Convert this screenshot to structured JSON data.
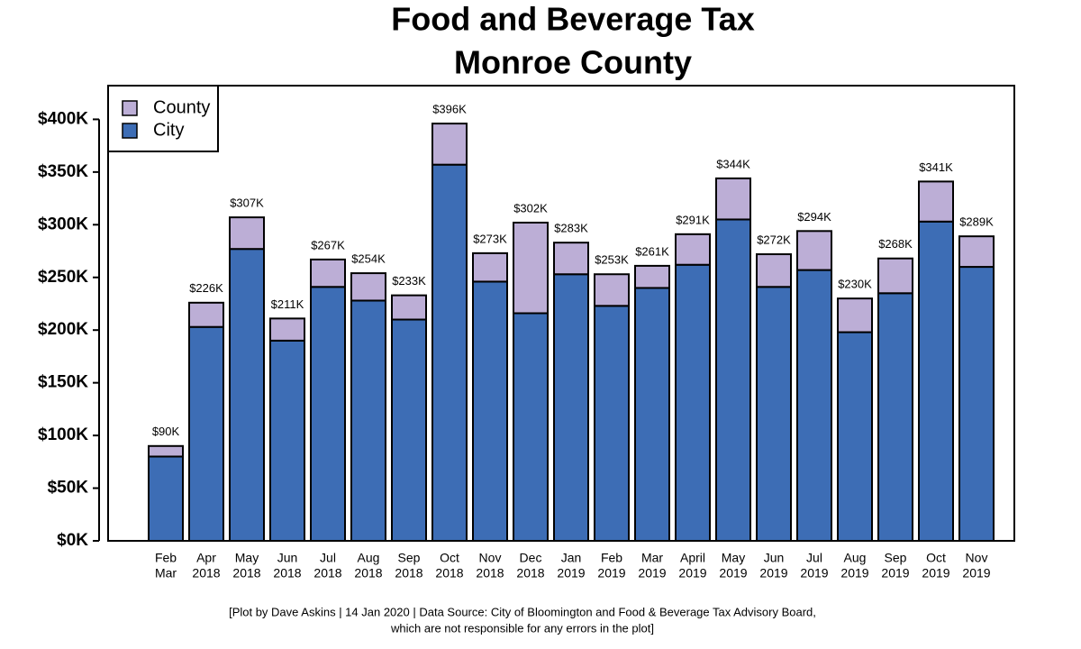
{
  "chart_data": {
    "type": "stacked_bar",
    "title": "Food and Beverage Tax",
    "subtitle": "Monroe County",
    "categories": [
      [
        "Feb",
        "Mar"
      ],
      [
        "Apr",
        "2018"
      ],
      [
        "May",
        "2018"
      ],
      [
        "Jun",
        "2018"
      ],
      [
        "Jul",
        "2018"
      ],
      [
        "Aug",
        "2018"
      ],
      [
        "Sep",
        "2018"
      ],
      [
        "Oct",
        "2018"
      ],
      [
        "Nov",
        "2018"
      ],
      [
        "Dec",
        "2018"
      ],
      [
        "Jan",
        "2019"
      ],
      [
        "Feb",
        "2019"
      ],
      [
        "Mar",
        "2019"
      ],
      [
        "April",
        "2019"
      ],
      [
        "May",
        "2019"
      ],
      [
        "Jun",
        "2019"
      ],
      [
        "Jul",
        "2019"
      ],
      [
        "Aug",
        "2019"
      ],
      [
        "Sep",
        "2019"
      ],
      [
        "Oct",
        "2019"
      ],
      [
        "Nov",
        "2019"
      ]
    ],
    "series": [
      {
        "name": "City",
        "color": "#3d6db5",
        "values": [
          80000,
          203000,
          277000,
          190000,
          241000,
          228000,
          210000,
          357000,
          246000,
          216000,
          253000,
          223000,
          240000,
          262000,
          305000,
          241000,
          257000,
          198000,
          235000,
          303000,
          260000
        ]
      },
      {
        "name": "County",
        "color": "#bcaed6",
        "values": [
          10000,
          23000,
          30000,
          21000,
          26000,
          26000,
          23000,
          39000,
          27000,
          86000,
          30000,
          30000,
          21000,
          29000,
          39000,
          31000,
          37000,
          32000,
          33000,
          38000,
          29000
        ]
      }
    ],
    "total_labels": [
      "$90K",
      "$226K",
      "$307K",
      "$211K",
      "$267K",
      "$254K",
      "$233K",
      "$396K",
      "$273K",
      "$302K",
      "$283K",
      "$253K",
      "$261K",
      "$291K",
      "$344K",
      "$272K",
      "$294K",
      "$230K",
      "$268K",
      "$341K",
      "$289K"
    ],
    "ylim": [
      0,
      432000
    ],
    "yticks": [
      {
        "value": 0,
        "label": "$0K"
      },
      {
        "value": 50000,
        "label": "$50K"
      },
      {
        "value": 100000,
        "label": "$100K"
      },
      {
        "value": 150000,
        "label": "$150K"
      },
      {
        "value": 200000,
        "label": "$200K"
      },
      {
        "value": 250000,
        "label": "$250K"
      },
      {
        "value": 300000,
        "label": "$300K"
      },
      {
        "value": 350000,
        "label": "$350K"
      },
      {
        "value": 400000,
        "label": "$400K"
      }
    ],
    "legend": "top-left",
    "footnote": [
      "[Plot by Dave Askins | 14 Jan 2020 | Data Source: City of Bloomington and Food & Beverage Tax Advisory Board,",
      "which are not responsible for any errors in the plot]"
    ]
  }
}
